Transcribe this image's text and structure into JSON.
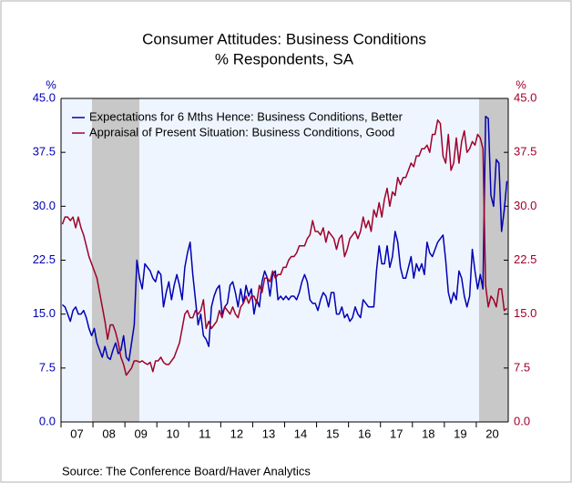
{
  "chart_data": {
    "type": "line",
    "title": "Consumer Attitudes: Business Conditions",
    "subtitle": "% Respondents, SA",
    "y_label": "%",
    "y2_label": "%",
    "source": "Source:  The Conference Board/Haver Analytics",
    "legend": "upper left",
    "categories": [
      "07",
      null,
      null,
      null,
      null,
      null,
      null,
      null,
      null,
      null,
      null,
      null,
      "08",
      null,
      null,
      null,
      null,
      null,
      null,
      null,
      null,
      null,
      null,
      null,
      "09",
      null,
      null,
      null,
      null,
      null,
      null,
      null,
      null,
      null,
      null,
      null,
      "10",
      null,
      null,
      null,
      null,
      null,
      null,
      null,
      null,
      null,
      null,
      null,
      "11",
      null,
      null,
      null,
      null,
      null,
      null,
      null,
      null,
      null,
      null,
      null,
      "12",
      null,
      null,
      null,
      null,
      null,
      null,
      null,
      null,
      null,
      null,
      null,
      "13",
      null,
      null,
      null,
      null,
      null,
      null,
      null,
      null,
      null,
      null,
      null,
      "14",
      null,
      null,
      null,
      null,
      null,
      null,
      null,
      null,
      null,
      null,
      null,
      "15",
      null,
      null,
      null,
      null,
      null,
      null,
      null,
      null,
      null,
      null,
      null,
      "16",
      null,
      null,
      null,
      null,
      null,
      null,
      null,
      null,
      null,
      null,
      null,
      "17",
      null,
      null,
      null,
      null,
      null,
      null,
      null,
      null,
      null,
      null,
      null,
      "18",
      null,
      null,
      null,
      null,
      null,
      null,
      null,
      null,
      null,
      null,
      null,
      "19",
      null,
      null,
      null,
      null,
      null,
      null,
      null,
      null,
      null,
      null,
      null,
      "20",
      null,
      null,
      null,
      null,
      null,
      null,
      null,
      null,
      null,
      null,
      null
    ],
    "series": [
      {
        "name": "Expectations for 6 Mths Hence: Business Conditions, Better",
        "color": "#0000b4",
        "values": [
          16.3,
          16,
          15,
          14,
          15.5,
          16,
          15,
          15,
          15.5,
          14.5,
          13,
          12,
          13,
          11,
          10,
          9,
          10.5,
          9,
          8.7,
          10,
          11,
          9.5,
          10,
          12,
          9,
          8.5,
          11,
          13.5,
          22.5,
          20,
          18.5,
          22,
          21.5,
          21,
          20,
          19.5,
          21,
          20.5,
          16,
          18,
          19.5,
          17,
          19,
          20.5,
          19,
          17,
          21.5,
          23.5,
          25,
          20.5,
          17,
          13.5,
          15,
          12,
          11.5,
          10.5,
          16,
          17.5,
          18.5,
          19,
          15,
          16,
          16.5,
          19,
          19.5,
          18,
          16,
          18.5,
          16.5,
          19,
          17.5,
          18.5,
          15,
          17,
          16,
          19.5,
          21,
          20,
          17.5,
          20.5,
          21,
          17,
          17.5,
          17,
          17.5,
          17,
          17.5,
          17.5,
          17,
          18,
          19.5,
          20.5,
          19.5,
          17,
          16.5,
          16.5,
          15.5,
          17,
          18,
          17.5,
          16,
          18,
          18,
          15,
          15,
          16,
          14.5,
          15,
          14,
          14.5,
          16,
          15,
          14.5,
          17,
          16.5,
          16,
          16,
          16,
          21,
          24.5,
          22,
          22,
          24.5,
          21.5,
          23,
          26.5,
          25,
          21.5,
          20,
          20,
          21.5,
          23,
          20,
          22,
          21,
          22,
          20.5,
          25,
          23.5,
          23,
          24,
          25,
          25.5,
          26,
          22.5,
          18,
          16.5,
          18,
          17,
          21,
          20,
          17.5,
          16,
          17.5,
          24,
          21,
          18.5,
          20.5,
          18.5,
          42.5,
          42.2,
          31.5,
          30,
          36.5,
          36,
          26.5,
          29.5,
          33.5
        ]
      },
      {
        "name": "Appraisal of Present Situation: Business Conditions, Good",
        "color": "#a0002a",
        "axis": "y2",
        "values": [
          27.5,
          28.5,
          28.5,
          28,
          28.5,
          27,
          28.5,
          27,
          26,
          24.5,
          23,
          22,
          21,
          20,
          18,
          16,
          14,
          11.5,
          13.5,
          13.5,
          12.5,
          11,
          9,
          8,
          6.5,
          7,
          7.5,
          8.5,
          8.5,
          8.3,
          8.5,
          8.2,
          8,
          8.3,
          7,
          8.5,
          8.5,
          9,
          8.3,
          8,
          8,
          8.5,
          9,
          10,
          11,
          13,
          15,
          15.5,
          14.5,
          14.5,
          15.5,
          15,
          15.5,
          17,
          13,
          14,
          13,
          13.5,
          14,
          15.5,
          14.5,
          16,
          15.5,
          15,
          16,
          15,
          14.5,
          16,
          16.5,
          17.5,
          16.5,
          17.5,
          17.5,
          16.5,
          19,
          18,
          20,
          20,
          19.5,
          21,
          20,
          20.5,
          20.5,
          21.5,
          21.5,
          22.5,
          23,
          23,
          23.5,
          24.5,
          24.5,
          24.5,
          25.5,
          26,
          28,
          26.5,
          26.5,
          26,
          27,
          25,
          26.5,
          26,
          25.5,
          24,
          25.5,
          26,
          23,
          24,
          25.5,
          26,
          26.5,
          25.5,
          26.5,
          28.5,
          27,
          28,
          26.5,
          29.5,
          28.5,
          30.5,
          28.5,
          31,
          32.5,
          30,
          32,
          31.5,
          34,
          33,
          34,
          34,
          35,
          36,
          35.5,
          37,
          37,
          38,
          38,
          38.5,
          37.5,
          40,
          40,
          42,
          41.5,
          37,
          36,
          40,
          35,
          36,
          39.5,
          36,
          39,
          40.5,
          37.5,
          38,
          39,
          38.5,
          40,
          39.5,
          38,
          19,
          16,
          17.5,
          17,
          16,
          18.5,
          18.5,
          15.5,
          15.8
        ]
      }
    ],
    "ylim": [
      0,
      45
    ],
    "yticks": [
      {
        "value": 0,
        "label": "0.0"
      },
      7.5,
      {
        "value": 15,
        "label": "15.0"
      },
      22.5,
      {
        "value": 30,
        "label": "30.0"
      },
      37.5,
      {
        "value": 45,
        "label": "45.0"
      }
    ],
    "y2lim": [
      0,
      45
    ],
    "y2ticks": [
      {
        "value": 0,
        "label": "0.0"
      },
      7.5,
      {
        "value": 15,
        "label": "15.0"
      },
      22.5,
      {
        "value": 30,
        "label": "30.0"
      },
      37.5,
      {
        "value": 45,
        "label": "45.0"
      }
    ]
  }
}
